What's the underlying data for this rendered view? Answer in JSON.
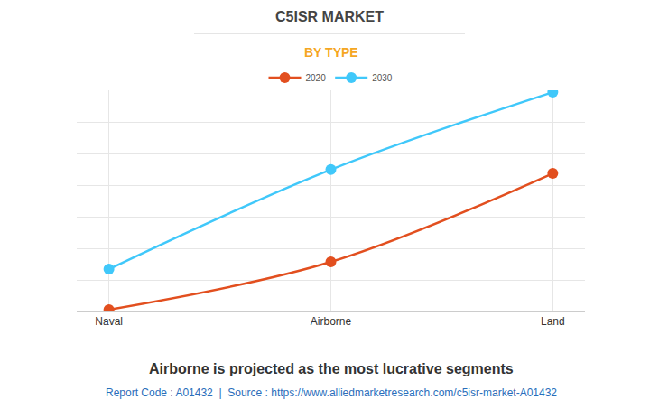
{
  "chart_data": {
    "type": "line",
    "title": "C5ISR MARKET",
    "subtitle": "BY TYPE",
    "categories": [
      "Naval",
      "Airborne",
      "Land"
    ],
    "series": [
      {
        "name": "2020",
        "color": "#e24f1f",
        "values": [
          0.06,
          1.57,
          4.37
        ]
      },
      {
        "name": "2030",
        "color": "#40c8fa",
        "values": [
          1.34,
          4.49,
          6.94
        ]
      }
    ],
    "ylim": [
      0,
      7
    ],
    "yticks": [
      0,
      1,
      2,
      3,
      4,
      5,
      6,
      7
    ],
    "grid": true,
    "legend": "top",
    "tick_labels": "x",
    "marker": "circle",
    "line_style": "solid",
    "annotations": [
      "Airborne is projected as the most lucrative segments",
      "Report Code : A01432  |  Source : https://www.alliedmarketresearch.com/c5isr-market-A01432"
    ]
  }
}
